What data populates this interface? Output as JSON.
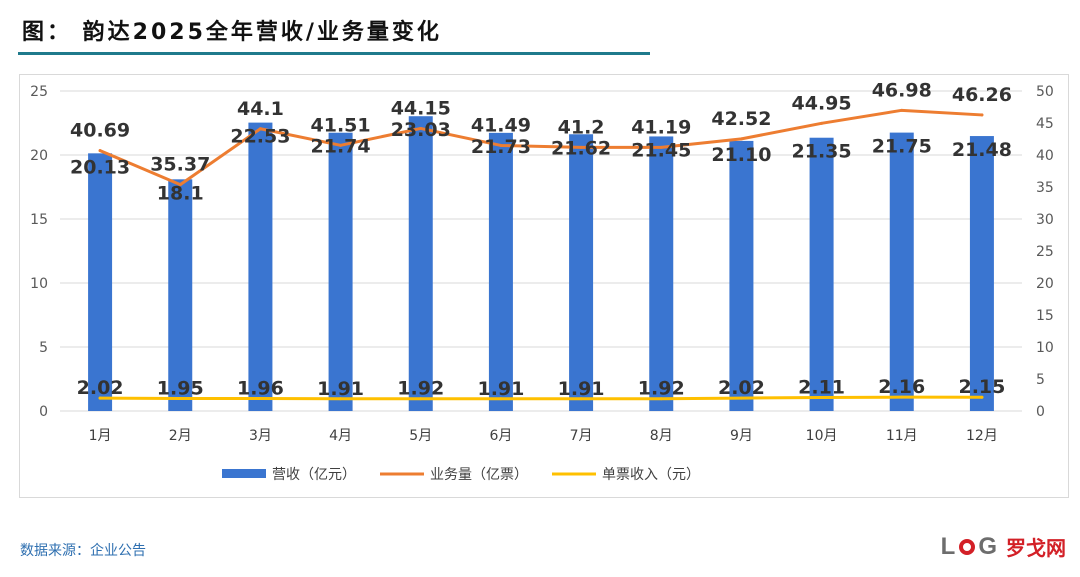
{
  "title": "图： 韵达2025全年营收/业务量变化",
  "source": "数据来源：企业公告",
  "logo": {
    "letters_left": "L",
    "letters_right": "G",
    "text": "罗戈网"
  },
  "colors": {
    "bar": "#3A75D0",
    "volume": "#ED7D31",
    "unit": "#FFC000",
    "title_rule": "#1f7a8c",
    "source": "#2e6fb0",
    "logo_red": "#d32027"
  },
  "chart_data": {
    "type": "bar",
    "categories": [
      "1月",
      "2月",
      "3月",
      "4月",
      "5月",
      "6月",
      "7月",
      "8月",
      "9月",
      "10月",
      "11月",
      "12月"
    ],
    "series": [
      {
        "name": "营收（亿元）",
        "type": "bar",
        "axis": "left",
        "values": [
          20.13,
          18.1,
          22.53,
          21.74,
          23.03,
          21.73,
          21.62,
          21.45,
          21.1,
          21.35,
          21.75,
          21.48
        ],
        "labels": [
          "20.13",
          "18.1",
          "22.53",
          "21.74",
          "23.03",
          "21.73",
          "21.62",
          "21.45",
          "21.10",
          "21.35",
          "21.75",
          "21.48"
        ]
      },
      {
        "name": "业务量（亿票）",
        "type": "line",
        "axis": "right",
        "values": [
          40.69,
          35.37,
          44.1,
          41.51,
          44.15,
          41.49,
          41.2,
          41.19,
          42.52,
          44.95,
          46.98,
          46.26
        ],
        "labels": [
          "40.69",
          "35.37",
          "44.1",
          "41.51",
          "44.15",
          "41.49",
          "41.2",
          "41.19",
          "42.52",
          "44.95",
          "46.98",
          "46.26"
        ]
      },
      {
        "name": "单票收入（元）",
        "type": "line",
        "axis": "right",
        "values": [
          2.02,
          1.95,
          1.96,
          1.91,
          1.92,
          1.91,
          1.91,
          1.92,
          2.02,
          2.11,
          2.16,
          2.15
        ],
        "labels": [
          "2.02",
          "1.95",
          "1.96",
          "1.91",
          "1.92",
          "1.91",
          "1.91",
          "1.92",
          "2.02",
          "2.11",
          "2.16",
          "2.15"
        ]
      }
    ],
    "y_left": {
      "min": 0,
      "max": 25,
      "ticks": [
        "0",
        "5",
        "10",
        "15",
        "20",
        "25"
      ]
    },
    "y_right": {
      "min": 0,
      "max": 50,
      "ticks": [
        "0",
        "5",
        "10",
        "15",
        "20",
        "25",
        "30",
        "35",
        "40",
        "45",
        "50"
      ]
    },
    "grid": true,
    "legend": "bottom"
  }
}
